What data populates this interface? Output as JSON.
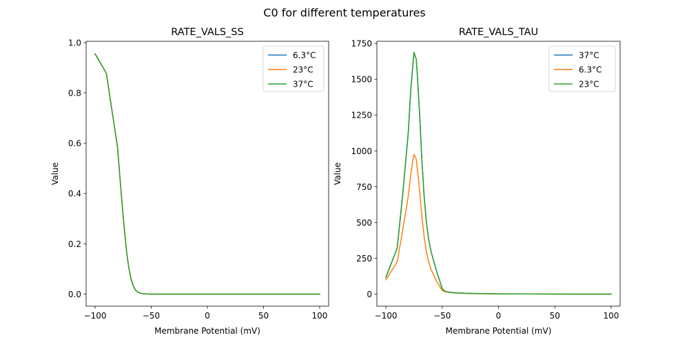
{
  "figure": {
    "suptitle": "C0 for different temperatures"
  },
  "chart_data": [
    {
      "type": "line",
      "title": "RATE_VALS_SS",
      "xlabel": "Membrane Potential (mV)",
      "ylabel": "Value",
      "xlim": [
        -108,
        108
      ],
      "ylim": [
        -0.048,
        1.005
      ],
      "xticks": [
        -100,
        -50,
        0,
        50,
        100
      ],
      "xtick_labels": [
        "−100",
        "−50",
        "0",
        "50",
        "100"
      ],
      "yticks": [
        0.0,
        0.2,
        0.4,
        0.6,
        0.8,
        1.0
      ],
      "ytick_labels": [
        "0.0",
        "0.2",
        "0.4",
        "0.6",
        "0.8",
        "1.0"
      ],
      "grid": false,
      "legend": "top-right",
      "series": [
        {
          "name": "6.3°C",
          "color": "#1f77b4",
          "x": [
            -100,
            -90,
            -80,
            -78,
            -76,
            -74,
            -72,
            -70,
            -68,
            -66,
            -64,
            -62,
            -60,
            -58,
            -55,
            -50,
            -40,
            -25,
            0,
            25,
            50,
            75,
            100
          ],
          "y": [
            0.955,
            0.878,
            0.583,
            0.47,
            0.36,
            0.26,
            0.17,
            0.105,
            0.06,
            0.032,
            0.016,
            0.008,
            0.004,
            0.002,
            0.001,
            0.0,
            0.0,
            0.0,
            0.0,
            0.0,
            0.0,
            0.0,
            0.0
          ]
        },
        {
          "name": "23°C",
          "color": "#ff7f0e",
          "x": [
            -100,
            -90,
            -80,
            -78,
            -76,
            -74,
            -72,
            -70,
            -68,
            -66,
            -64,
            -62,
            -60,
            -58,
            -55,
            -50,
            -40,
            -25,
            0,
            25,
            50,
            75,
            100
          ],
          "y": [
            0.955,
            0.878,
            0.583,
            0.47,
            0.36,
            0.26,
            0.17,
            0.105,
            0.06,
            0.032,
            0.016,
            0.008,
            0.004,
            0.002,
            0.001,
            0.0,
            0.0,
            0.0,
            0.0,
            0.0,
            0.0,
            0.0,
            0.0
          ]
        },
        {
          "name": "37°C",
          "color": "#2ca02c",
          "x": [
            -100,
            -90,
            -80,
            -78,
            -76,
            -74,
            -72,
            -70,
            -68,
            -66,
            -64,
            -62,
            -60,
            -58,
            -55,
            -50,
            -40,
            -25,
            0,
            25,
            50,
            75,
            100
          ],
          "y": [
            0.955,
            0.878,
            0.583,
            0.47,
            0.36,
            0.26,
            0.17,
            0.105,
            0.06,
            0.032,
            0.016,
            0.008,
            0.004,
            0.002,
            0.001,
            0.0,
            0.0,
            0.0,
            0.0,
            0.0,
            0.0,
            0.0,
            0.0
          ]
        }
      ]
    },
    {
      "type": "line",
      "title": "RATE_VALS_TAU",
      "xlabel": "Membrane Potential (mV)",
      "ylabel": "Value",
      "xlim": [
        -108,
        108
      ],
      "ylim": [
        -84,
        1765
      ],
      "xticks": [
        -100,
        -50,
        0,
        50,
        100
      ],
      "xtick_labels": [
        "−100",
        "−50",
        "0",
        "50",
        "100"
      ],
      "yticks": [
        0,
        250,
        500,
        750,
        1000,
        1250,
        1500,
        1750
      ],
      "ytick_labels": [
        "0",
        "250",
        "500",
        "750",
        "1000",
        "1250",
        "1500",
        "1750"
      ],
      "grid": false,
      "legend": "top-right",
      "series": [
        {
          "name": "37°C",
          "color": "#1f77b4",
          "x": [
            -100,
            -90,
            -85,
            -80,
            -78,
            -76,
            -75,
            -74,
            -73,
            -72,
            -70,
            -68,
            -66,
            -64,
            -62,
            -60,
            -55,
            -50,
            -48,
            -45,
            -40,
            -30,
            -20,
            0,
            25,
            50,
            75,
            100
          ],
          "y": [
            118,
            320,
            700,
            1140,
            1420,
            1600,
            1688,
            1660,
            1640,
            1520,
            1250,
            930,
            680,
            500,
            380,
            300,
            160,
            40,
            22,
            15,
            10,
            6,
            4,
            2,
            1,
            0.5,
            0.2,
            0.1
          ]
        },
        {
          "name": "6.3°C",
          "color": "#ff7f0e",
          "x": [
            -100,
            -90,
            -85,
            -80,
            -78,
            -76,
            -75,
            -74,
            -73,
            -72,
            -70,
            -68,
            -66,
            -64,
            -62,
            -60,
            -55,
            -50,
            -48,
            -45,
            -40,
            -30,
            -20,
            0,
            25,
            50,
            75,
            100
          ],
          "y": [
            100,
            225,
            450,
            690,
            830,
            940,
            975,
            960,
            940,
            870,
            720,
            540,
            400,
            295,
            225,
            175,
            90,
            25,
            18,
            13,
            9,
            5,
            3,
            1.5,
            1,
            0.5,
            0.2,
            0.1
          ]
        },
        {
          "name": "23°C",
          "color": "#2ca02c",
          "x": [
            -100,
            -90,
            -85,
            -80,
            -78,
            -76,
            -75,
            -74,
            -73,
            -72,
            -70,
            -68,
            -66,
            -64,
            -62,
            -60,
            -55,
            -50,
            -48,
            -45,
            -40,
            -30,
            -20,
            0,
            25,
            50,
            75,
            100
          ],
          "y": [
            118,
            320,
            700,
            1140,
            1420,
            1600,
            1688,
            1660,
            1640,
            1520,
            1250,
            930,
            680,
            500,
            380,
            300,
            160,
            40,
            22,
            15,
            10,
            6,
            4,
            2,
            1,
            0.5,
            0.2,
            0.1
          ]
        }
      ]
    }
  ]
}
